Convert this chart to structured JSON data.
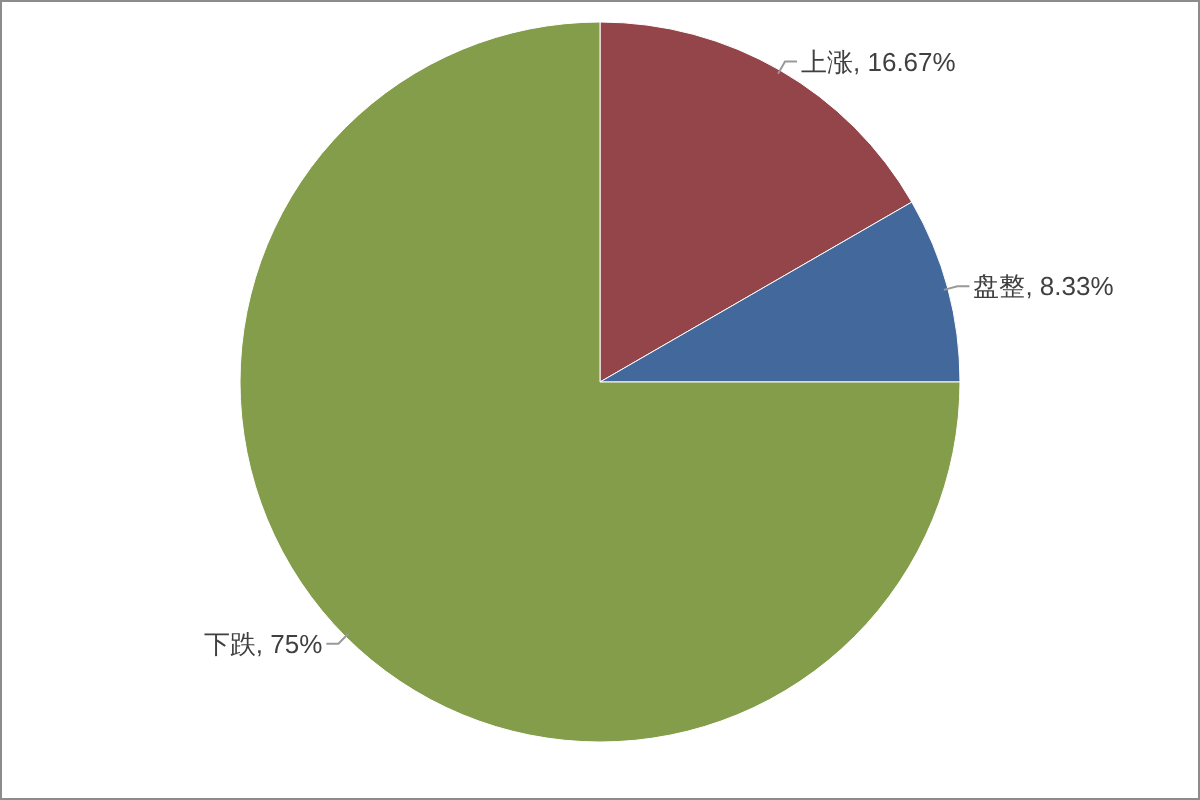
{
  "chart_data": {
    "type": "pie",
    "categories": [
      "上涨",
      "盘整",
      "下跌"
    ],
    "values": [
      16.67,
      8.33,
      75
    ],
    "colors": [
      "#944549",
      "#43699c",
      "#839d4a"
    ],
    "value_labels": [
      "16.67%",
      "8.33%",
      "75%"
    ]
  }
}
